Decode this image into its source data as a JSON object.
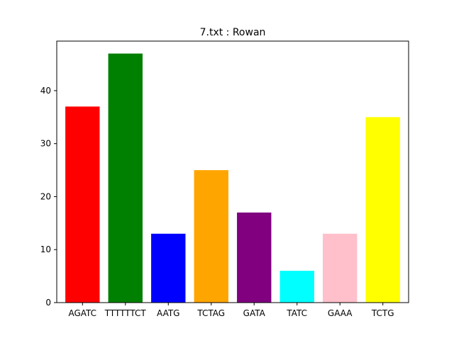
{
  "chart_data": {
    "type": "bar",
    "title": "7.txt : Rowan",
    "xlabel": "",
    "ylabel": "",
    "categories": [
      "AGATC",
      "TTTTTTCT",
      "AATG",
      "TCTAG",
      "GATA",
      "TATC",
      "GAAA",
      "TCTG"
    ],
    "values": [
      37,
      47,
      13,
      25,
      17,
      6,
      13,
      35
    ],
    "colors": [
      "#ff0000",
      "#008000",
      "#0000ff",
      "#ffa500",
      "#800080",
      "#00ffff",
      "#ffc0cb",
      "#ffff00"
    ],
    "ylim": [
      0,
      49.35
    ],
    "yticks": [
      0,
      10,
      20,
      30,
      40
    ],
    "grid": false,
    "legend": "none"
  }
}
